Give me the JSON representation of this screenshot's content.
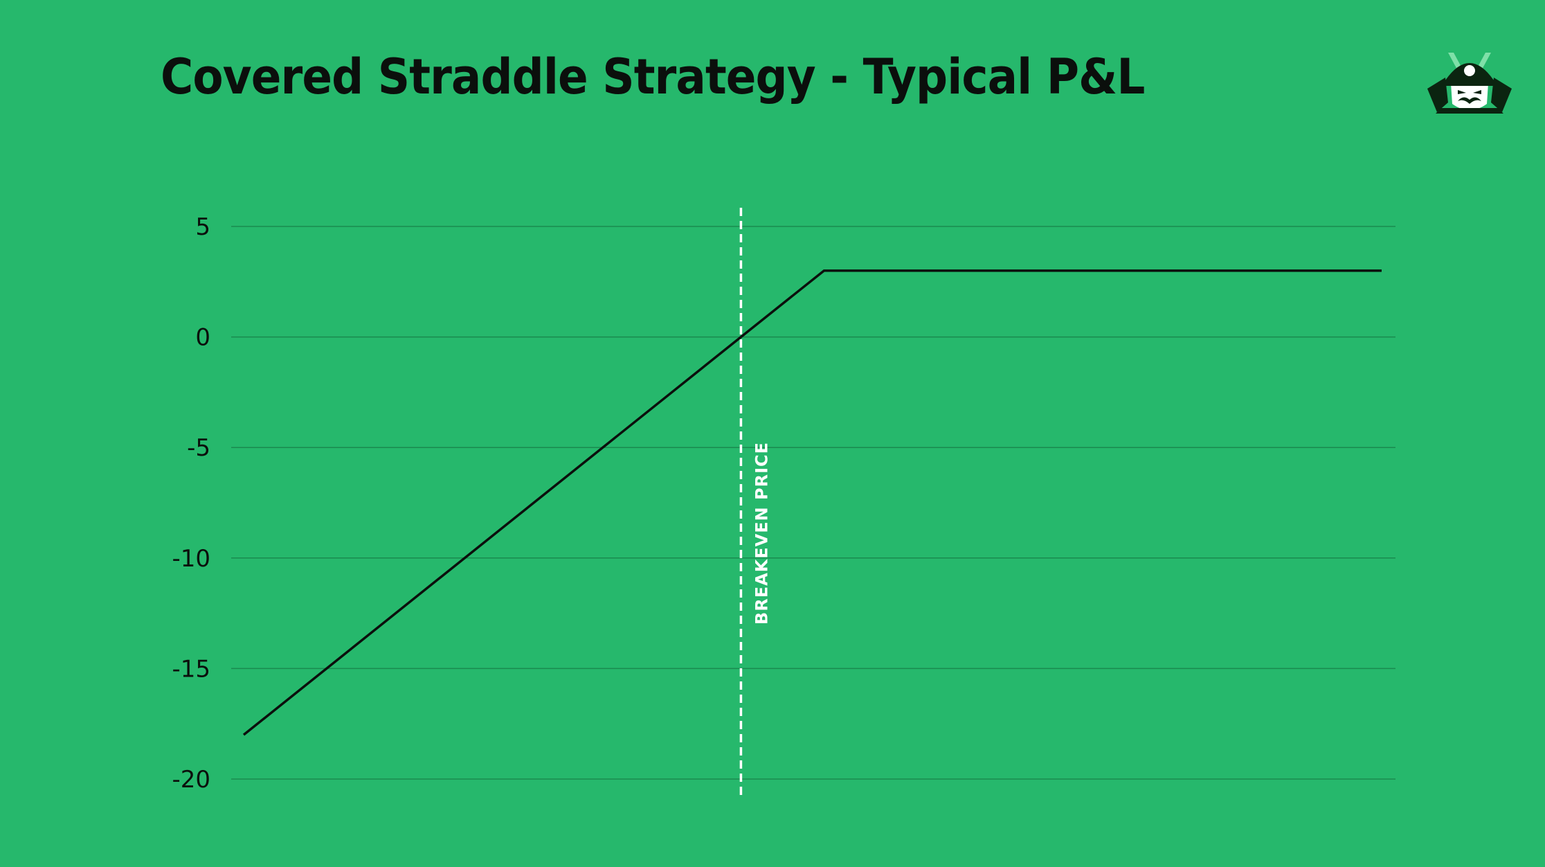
{
  "colors": {
    "background": "#26b86c",
    "line": "#0b0f0c",
    "gridline": "#1a8a4f",
    "breakeven_line": "#ffffff",
    "text": "#0b0f0c"
  },
  "logo": {
    "icon": "samurai-helmet-icon"
  },
  "chart_data": {
    "type": "line",
    "title": "Covered Straddle Strategy - Typical P&L",
    "xlabel": "",
    "ylabel": "",
    "ylim": [
      -20,
      5
    ],
    "yticks": [
      5,
      0,
      -5,
      -10,
      -15,
      -20
    ],
    "ytick_labels": [
      "5",
      "0",
      "-5",
      "-10",
      "-15",
      "-20"
    ],
    "grid": true,
    "xlim": [
      0,
      100
    ],
    "series": [
      {
        "x": [
          0,
          43.7,
          51,
          100
        ],
        "y": [
          -18,
          0,
          3,
          3
        ]
      }
    ],
    "annotations": [
      {
        "type": "vertical-line",
        "style": "dashed",
        "x": 43.7,
        "label": "BREAKEVEN PRICE"
      }
    ]
  }
}
